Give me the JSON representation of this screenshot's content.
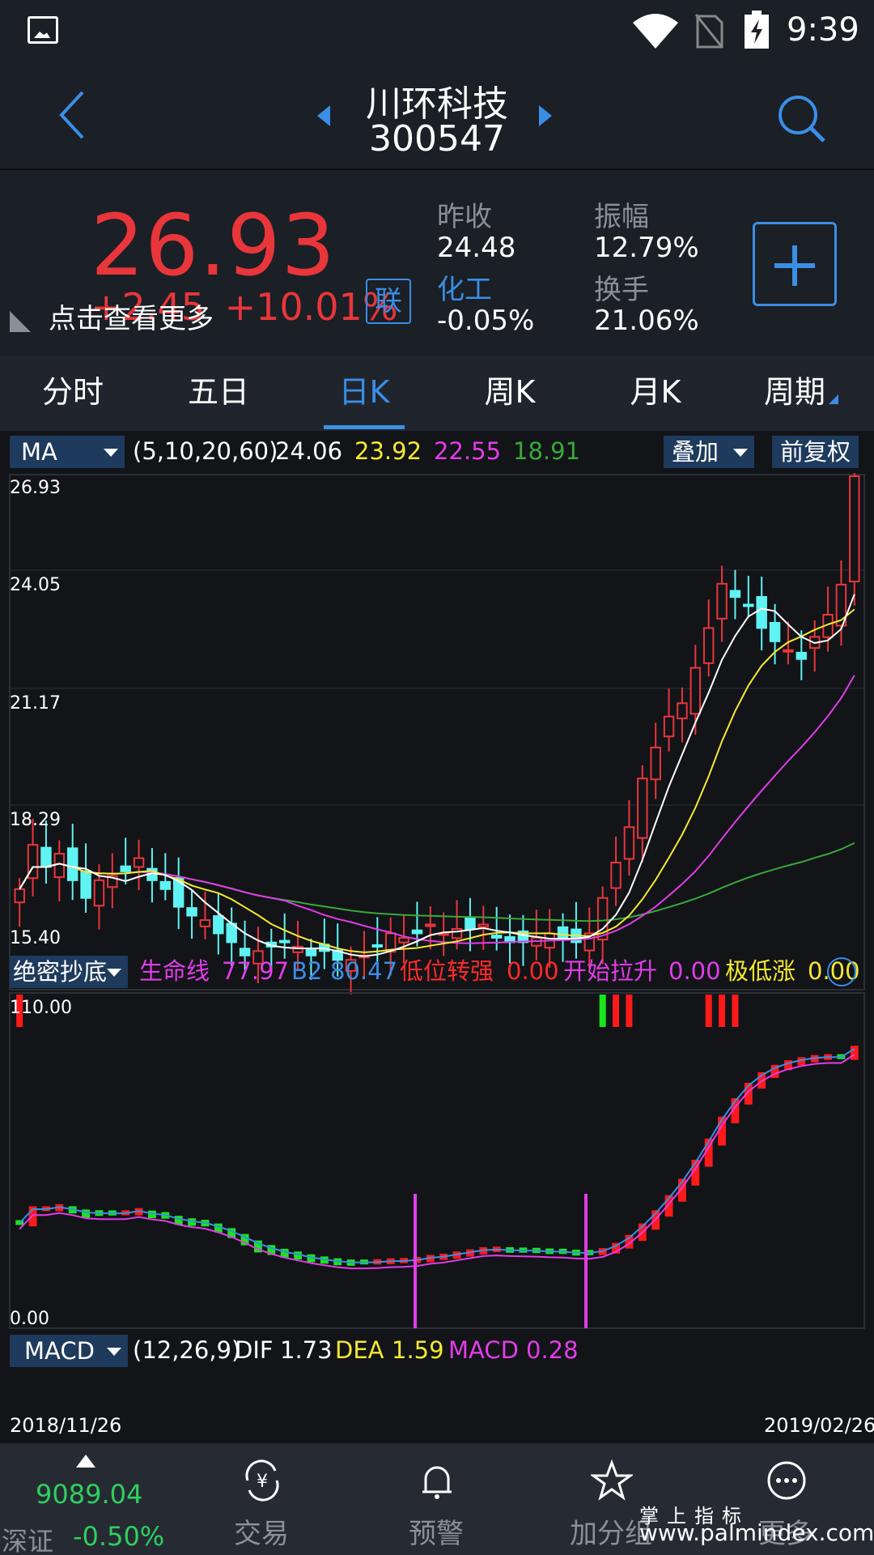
{
  "status_bar": {
    "time": "9:39"
  },
  "header": {
    "stock_name": "川环科技",
    "stock_code": "300547"
  },
  "quote": {
    "price": "26.93",
    "change": "+2.45",
    "change_pct": "+10.01%",
    "tooltip": "点击查看更多",
    "lian_label": "联",
    "prev_close_label": "昨收",
    "prev_close_value": "24.48",
    "sector_label": "化工",
    "sector_value": "-0.05%",
    "amplitude_label": "振幅",
    "amplitude_value": "12.79%",
    "turnover_label": "换手",
    "turnover_value": "21.06%",
    "colors": {
      "up": "#e8363b",
      "accent": "#3a8ee6",
      "down": "#2fcf5e"
    }
  },
  "tabs": [
    {
      "label": "分时"
    },
    {
      "label": "五日"
    },
    {
      "label": "日K",
      "active": true
    },
    {
      "label": "周K"
    },
    {
      "label": "月K"
    },
    {
      "label": "周期"
    }
  ],
  "ma_row": {
    "select": "MA",
    "params": "(5,10,20,60)",
    "ma5": "24.06",
    "ma10": "23.92",
    "ma20": "22.55",
    "ma60": "18.91",
    "overlay_btn": "叠加",
    "adjust_btn": "前复权"
  },
  "price_axis": [
    "26.93",
    "24.05",
    "21.17",
    "18.29",
    "15.40"
  ],
  "indicator_row": {
    "select": "绝密抄底",
    "line1_label": "生命线",
    "line1_value": "77.97",
    "line2_label": "B2",
    "line2_value": "80.47",
    "line3_label": "低位转强",
    "line3_value": "0.00",
    "line4_label": "开始拉升",
    "line4_value": "0.00",
    "line5_label": "极低涨",
    "line5_value": "0.00"
  },
  "indicator_axis": {
    "top": "110.00",
    "bottom": "0.00"
  },
  "macd_row": {
    "select": "MACD",
    "params": "(12,26,9)",
    "dif_label": "DIF",
    "dif_value": "1.73",
    "dea_label": "DEA",
    "dea_value": "1.59",
    "macd_label": "MACD",
    "macd_value": "0.28"
  },
  "dates": {
    "start": "2018/11/26",
    "end": "2019/02/26"
  },
  "bottom_nav": {
    "index_value": "9089.04",
    "index_name": "深证",
    "index_change": "-0.50%",
    "items": [
      {
        "label": "交易",
        "icon": "yen-exchange-icon"
      },
      {
        "label": "预警",
        "icon": "bell-icon"
      },
      {
        "label": "加分组",
        "icon": "star-icon"
      },
      {
        "label": "更多",
        "icon": "more-icon"
      }
    ]
  },
  "watermark": {
    "line1": "掌上指标",
    "line2": "www.palmindex.com"
  },
  "chart_data": {
    "type": "candlestick",
    "closes": [
      17.6,
      18.6,
      18.1,
      18.4,
      17.8,
      17.4,
      17.8,
      17.9,
      18.0,
      18.3,
      17.8,
      17.6,
      17.2,
      17.0,
      16.9,
      16.6,
      16.4,
      16.1,
      16.2,
      16.3,
      16.4,
      16.3,
      16.1,
      16.2,
      16.0,
      16.0,
      16.1,
      16.3,
      16.6,
      16.5,
      16.6,
      16.8,
      16.6,
      16.7,
      16.7,
      16.8,
      16.5,
      16.4,
      16.4,
      16.5,
      16.6,
      16.5,
      16.4,
      16.6,
      17.4,
      18.2,
      19.0,
      20.1,
      20.8,
      21.5,
      21.8,
      22.6,
      23.5,
      24.5,
      24.2,
      24.0,
      23.5,
      23.2,
      23.0,
      22.8,
      23.3,
      23.8,
      24.48,
      26.93
    ],
    "ma_colors": {
      "ma5": "#ffffff",
      "ma10": "#f5e832",
      "ma20": "#e23ce8",
      "ma60": "#3aa83a"
    },
    "ylim": [
      15.4,
      26.93
    ]
  }
}
